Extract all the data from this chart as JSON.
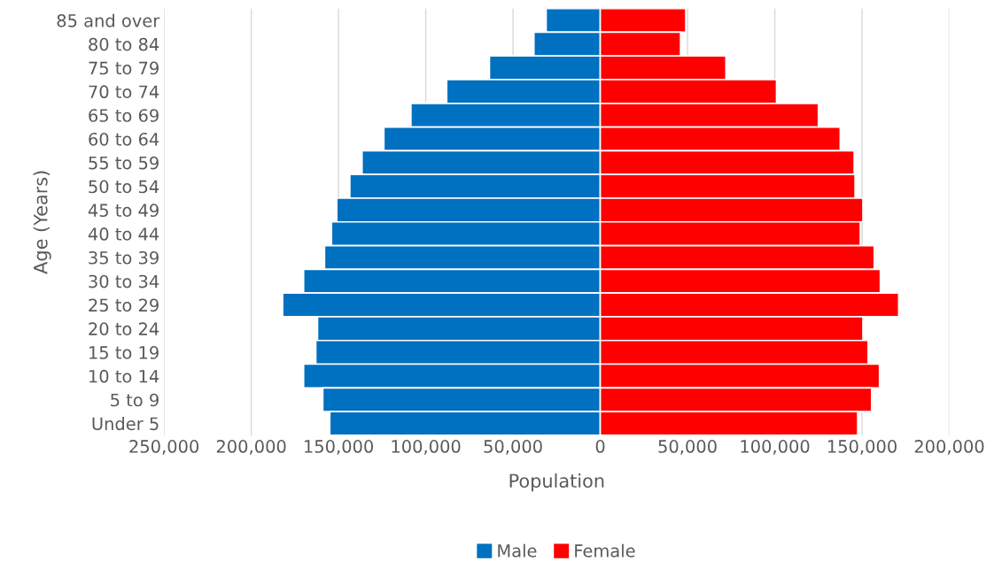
{
  "chart_data": {
    "type": "bar",
    "orientation": "horizontal",
    "stacked": true,
    "xlabel": "Population",
    "ylabel": "Age (Years)",
    "categories": [
      "85 and over",
      "80 to 84",
      "75 to 79",
      "70 to 74",
      "65 to 69",
      "60 to 64",
      "55 to 59",
      "50 to 54",
      "45 to 49",
      "40 to 44",
      "35 to 39",
      "30 to 34",
      "25 to 29",
      "20 to 24",
      "15 to 19",
      "10 to 14",
      "5 to 9",
      "Under 5"
    ],
    "series": [
      {
        "name": "Male",
        "color": "#0070c0",
        "values": [
          -31000,
          -38000,
          -63500,
          -88000,
          -108500,
          -124000,
          -136500,
          -143500,
          -151000,
          -154000,
          -158000,
          -170000,
          -182000,
          -162000,
          -163000,
          -170000,
          -159000,
          -155000
        ]
      },
      {
        "name": "Female",
        "color": "#ff0000",
        "values": [
          49000,
          46000,
          72000,
          101000,
          125000,
          137500,
          145500,
          146000,
          150500,
          149000,
          157000,
          160500,
          171000,
          150500,
          153500,
          160000,
          155500,
          147500
        ]
      }
    ],
    "xlim": [
      -250000,
      200000
    ],
    "xticks": [
      {
        "value": -250000,
        "label": "250,000"
      },
      {
        "value": -200000,
        "label": "200,000"
      },
      {
        "value": -150000,
        "label": "150,000"
      },
      {
        "value": -100000,
        "label": "100,000"
      },
      {
        "value": -50000,
        "label": "50,000"
      },
      0,
      {
        "value": 50000,
        "label": "50,000"
      },
      {
        "value": 100000,
        "label": "100,000"
      },
      {
        "value": 150000,
        "label": "150,000"
      },
      {
        "value": 200000,
        "label": "200,000"
      }
    ],
    "grid": "x",
    "legend": "bottom"
  }
}
